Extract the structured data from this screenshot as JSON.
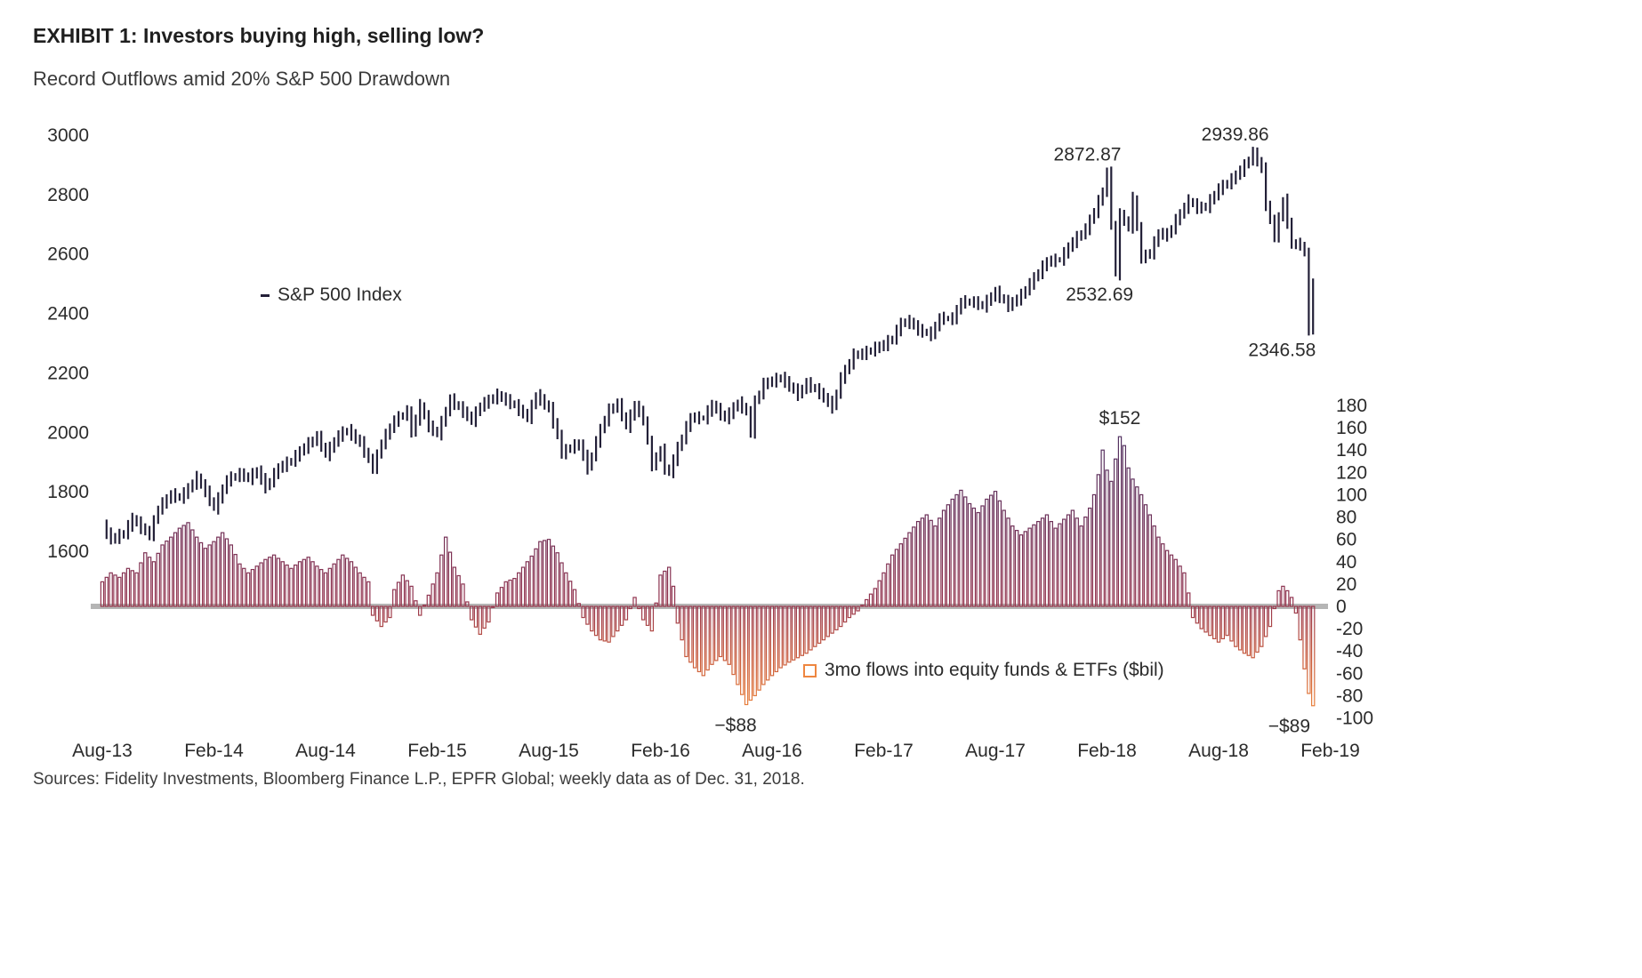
{
  "header": {
    "title": "EXHIBIT 1: Investors buying high, selling low?",
    "subtitle": "Record Outflows amid 20% S&P 500 Drawdown"
  },
  "footer": {
    "source": "Sources: Fidelity Investments, Bloomberg Finance L.P., EPFR Global; weekly data as of Dec. 31, 2018."
  },
  "chart_data": {
    "type": "combo",
    "title": "Record Outflows amid 20% S&P 500 Drawdown",
    "x_axis": {
      "labels": [
        "Aug-13",
        "Feb-14",
        "Aug-14",
        "Feb-15",
        "Aug-15",
        "Feb-16",
        "Aug-16",
        "Feb-17",
        "Aug-17",
        "Feb-18",
        "Aug-18",
        "Feb-19"
      ],
      "weeks_per_label": 26,
      "total_weeks": 287,
      "frequency": "weekly"
    },
    "left_axis": {
      "ticks": [
        "3000",
        "2800",
        "2600",
        "2400",
        "2200",
        "2000",
        "1800",
        "1600"
      ],
      "range": [
        1600,
        3000
      ],
      "series": "S&P 500 Index"
    },
    "right_axis": {
      "ticks": [
        "180",
        "160",
        "140",
        "120",
        "100",
        "80",
        "60",
        "40",
        "20",
        "0",
        "-20",
        "-40",
        "-60",
        "-80",
        "-100"
      ],
      "range": [
        -100,
        180
      ],
      "series": "3mo flows into equity funds & ETFs ($bil)"
    },
    "legend": {
      "sp500_label": "S&P 500 Index",
      "flows_label": "3mo flows into equity funds & ETFs ($bil)"
    },
    "colors": {
      "sp_line": "#232038",
      "flows_orange": "#ee8640",
      "zero_line": "#b5b5b5",
      "text": "#2b2b2b"
    },
    "series": [
      {
        "id": "sp500",
        "name": "S&P 500 Index",
        "type": "hilo-line",
        "color": "#232038",
        "keypoints": [
          [
            0,
            1685
          ],
          [
            2,
            1640
          ],
          [
            5,
            1660
          ],
          [
            7,
            1710
          ],
          [
            9,
            1680
          ],
          [
            11,
            1655
          ],
          [
            13,
            1745
          ],
          [
            16,
            1790
          ],
          [
            18,
            1780
          ],
          [
            20,
            1810
          ],
          [
            22,
            1848
          ],
          [
            24,
            1800
          ],
          [
            26,
            1745
          ],
          [
            29,
            1840
          ],
          [
            32,
            1860
          ],
          [
            34,
            1845
          ],
          [
            36,
            1870
          ],
          [
            38,
            1815
          ],
          [
            41,
            1880
          ],
          [
            44,
            1905
          ],
          [
            47,
            1950
          ],
          [
            50,
            1985
          ],
          [
            52,
            1925
          ],
          [
            55,
            1990
          ],
          [
            57,
            2007
          ],
          [
            60,
            1965
          ],
          [
            63,
            1880
          ],
          [
            65,
            1965
          ],
          [
            68,
            2040
          ],
          [
            71,
            2070
          ],
          [
            72,
            2000
          ],
          [
            74,
            2090
          ],
          [
            76,
            2020
          ],
          [
            78,
            1995
          ],
          [
            81,
            2110
          ],
          [
            84,
            2070
          ],
          [
            86,
            2040
          ],
          [
            88,
            2090
          ],
          [
            92,
            2125
          ],
          [
            96,
            2090
          ],
          [
            99,
            2050
          ],
          [
            101,
            2125
          ],
          [
            104,
            2080
          ],
          [
            106,
            1990
          ],
          [
            107,
            1930
          ],
          [
            109,
            1950
          ],
          [
            111,
            1960
          ],
          [
            113,
            1880
          ],
          [
            116,
            2010
          ],
          [
            118,
            2075
          ],
          [
            120,
            2095
          ],
          [
            122,
            2020
          ],
          [
            124,
            2090
          ],
          [
            126,
            2045
          ],
          [
            128,
            1890
          ],
          [
            130,
            1940
          ],
          [
            131,
            1880
          ],
          [
            132,
            1865
          ],
          [
            134,
            1948
          ],
          [
            137,
            2050
          ],
          [
            140,
            2048
          ],
          [
            142,
            2092
          ],
          [
            145,
            2047
          ],
          [
            148,
            2099
          ],
          [
            150,
            2071
          ],
          [
            151,
            2000
          ],
          [
            152,
            2103
          ],
          [
            154,
            2162
          ],
          [
            158,
            2184
          ],
          [
            162,
            2128
          ],
          [
            164,
            2165
          ],
          [
            167,
            2133
          ],
          [
            170,
            2085
          ],
          [
            172,
            2182
          ],
          [
            175,
            2260
          ],
          [
            177,
            2264
          ],
          [
            179,
            2277
          ],
          [
            182,
            2295
          ],
          [
            184,
            2316
          ],
          [
            186,
            2367
          ],
          [
            188,
            2373
          ],
          [
            190,
            2344
          ],
          [
            193,
            2329
          ],
          [
            195,
            2384
          ],
          [
            198,
            2382
          ],
          [
            200,
            2439
          ],
          [
            203,
            2438
          ],
          [
            205,
            2425
          ],
          [
            208,
            2472
          ],
          [
            211,
            2426
          ],
          [
            214,
            2461
          ],
          [
            217,
            2519
          ],
          [
            220,
            2575
          ],
          [
            223,
            2582
          ],
          [
            226,
            2642
          ],
          [
            229,
            2683
          ],
          [
            231,
            2743
          ],
          [
            233,
            2810
          ],
          [
            234,
            2873
          ],
          [
            236,
            2533
          ],
          [
            237,
            2732
          ],
          [
            239,
            2691
          ],
          [
            240,
            2787
          ],
          [
            242,
            2588
          ],
          [
            244,
            2604
          ],
          [
            246,
            2670
          ],
          [
            248,
            2663
          ],
          [
            250,
            2713
          ],
          [
            253,
            2779
          ],
          [
            255,
            2755
          ],
          [
            257,
            2760
          ],
          [
            260,
            2819
          ],
          [
            263,
            2850
          ],
          [
            266,
            2897
          ],
          [
            268,
            2940
          ],
          [
            270,
            2886
          ],
          [
            271,
            2767
          ],
          [
            273,
            2659
          ],
          [
            275,
            2781
          ],
          [
            277,
            2633
          ],
          [
            279,
            2633
          ],
          [
            280,
            2600
          ],
          [
            281,
            2347
          ],
          [
            282,
            2500
          ]
        ]
      },
      {
        "id": "flows",
        "name": "3mo flows into equity funds & ETFs ($bil)",
        "type": "bar",
        "gradient_stops": [
          [
            0,
            "#4a3566"
          ],
          [
            0.35,
            "#6b2f58"
          ],
          [
            0.62,
            "#93344f"
          ],
          [
            0.8,
            "#c85a3c"
          ],
          [
            1,
            "#f18a3c"
          ]
        ],
        "keypoints": [
          [
            0,
            22
          ],
          [
            2,
            30
          ],
          [
            4,
            26
          ],
          [
            6,
            34
          ],
          [
            8,
            30
          ],
          [
            10,
            48
          ],
          [
            12,
            40
          ],
          [
            14,
            55
          ],
          [
            16,
            62
          ],
          [
            18,
            70
          ],
          [
            20,
            75
          ],
          [
            22,
            62
          ],
          [
            24,
            52
          ],
          [
            26,
            58
          ],
          [
            28,
            66
          ],
          [
            30,
            55
          ],
          [
            32,
            38
          ],
          [
            34,
            30
          ],
          [
            36,
            36
          ],
          [
            38,
            42
          ],
          [
            40,
            46
          ],
          [
            42,
            40
          ],
          [
            44,
            34
          ],
          [
            46,
            40
          ],
          [
            48,
            44
          ],
          [
            50,
            36
          ],
          [
            52,
            30
          ],
          [
            54,
            38
          ],
          [
            56,
            46
          ],
          [
            58,
            40
          ],
          [
            60,
            30
          ],
          [
            62,
            22
          ],
          [
            63,
            -8
          ],
          [
            65,
            -18
          ],
          [
            67,
            -10
          ],
          [
            68,
            15
          ],
          [
            70,
            28
          ],
          [
            72,
            18
          ],
          [
            74,
            -8
          ],
          [
            76,
            10
          ],
          [
            78,
            30
          ],
          [
            80,
            62
          ],
          [
            82,
            35
          ],
          [
            84,
            20
          ],
          [
            86,
            -12
          ],
          [
            88,
            -25
          ],
          [
            90,
            -14
          ],
          [
            92,
            12
          ],
          [
            94,
            22
          ],
          [
            96,
            25
          ],
          [
            98,
            35
          ],
          [
            100,
            45
          ],
          [
            102,
            58
          ],
          [
            104,
            60
          ],
          [
            106,
            48
          ],
          [
            108,
            30
          ],
          [
            110,
            15
          ],
          [
            112,
            -10
          ],
          [
            114,
            -22
          ],
          [
            116,
            -30
          ],
          [
            118,
            -32
          ],
          [
            120,
            -22
          ],
          [
            122,
            -12
          ],
          [
            124,
            8
          ],
          [
            126,
            -12
          ],
          [
            128,
            -22
          ],
          [
            130,
            28
          ],
          [
            132,
            35
          ],
          [
            133,
            18
          ],
          [
            134,
            -15
          ],
          [
            136,
            -45
          ],
          [
            138,
            -55
          ],
          [
            140,
            -62
          ],
          [
            142,
            -52
          ],
          [
            144,
            -45
          ],
          [
            146,
            -52
          ],
          [
            148,
            -70
          ],
          [
            150,
            -88
          ],
          [
            152,
            -80
          ],
          [
            154,
            -70
          ],
          [
            156,
            -62
          ],
          [
            158,
            -55
          ],
          [
            160,
            -50
          ],
          [
            162,
            -46
          ],
          [
            164,
            -42
          ],
          [
            166,
            -36
          ],
          [
            168,
            -30
          ],
          [
            170,
            -24
          ],
          [
            172,
            -18
          ],
          [
            174,
            -10
          ],
          [
            176,
            -4
          ],
          [
            178,
            6
          ],
          [
            180,
            16
          ],
          [
            182,
            30
          ],
          [
            184,
            46
          ],
          [
            186,
            56
          ],
          [
            188,
            66
          ],
          [
            190,
            76
          ],
          [
            192,
            82
          ],
          [
            194,
            72
          ],
          [
            196,
            86
          ],
          [
            198,
            96
          ],
          [
            200,
            104
          ],
          [
            202,
            92
          ],
          [
            204,
            84
          ],
          [
            206,
            96
          ],
          [
            208,
            103
          ],
          [
            210,
            86
          ],
          [
            212,
            72
          ],
          [
            214,
            64
          ],
          [
            216,
            70
          ],
          [
            218,
            76
          ],
          [
            220,
            82
          ],
          [
            222,
            70
          ],
          [
            224,
            78
          ],
          [
            226,
            86
          ],
          [
            228,
            72
          ],
          [
            230,
            88
          ],
          [
            231,
            100
          ],
          [
            232,
            118
          ],
          [
            233,
            140
          ],
          [
            234,
            122
          ],
          [
            235,
            112
          ],
          [
            236,
            132
          ],
          [
            237,
            152
          ],
          [
            238,
            144
          ],
          [
            239,
            124
          ],
          [
            240,
            114
          ],
          [
            242,
            100
          ],
          [
            244,
            82
          ],
          [
            246,
            62
          ],
          [
            248,
            50
          ],
          [
            250,
            42
          ],
          [
            252,
            30
          ],
          [
            253,
            12
          ],
          [
            254,
            -10
          ],
          [
            256,
            -20
          ],
          [
            258,
            -26
          ],
          [
            260,
            -32
          ],
          [
            262,
            -26
          ],
          [
            264,
            -36
          ],
          [
            266,
            -42
          ],
          [
            268,
            -46
          ],
          [
            270,
            -36
          ],
          [
            272,
            -18
          ],
          [
            274,
            14
          ],
          [
            275,
            18
          ],
          [
            276,
            14
          ],
          [
            277,
            8
          ],
          [
            278,
            -6
          ],
          [
            279,
            -30
          ],
          [
            280,
            -56
          ],
          [
            281,
            -78
          ],
          [
            282,
            -89
          ]
        ]
      }
    ],
    "annotations": [
      {
        "text": "2872.87",
        "series": "sp500",
        "week": 234,
        "value": 2873,
        "placement": "above"
      },
      {
        "text": "2532.69",
        "series": "sp500",
        "week": 236,
        "value": 2533,
        "placement": "below"
      },
      {
        "text": "2939.86",
        "series": "sp500",
        "week": 268,
        "value": 2940,
        "placement": "above"
      },
      {
        "text": "2346.58",
        "series": "sp500",
        "week": 281,
        "value": 2347,
        "placement": "below"
      },
      {
        "text": "$152",
        "series": "flows",
        "week": 237,
        "value": 152,
        "placement": "above"
      },
      {
        "text": "−$88",
        "series": "flows",
        "week": 150,
        "value": -88,
        "placement": "below"
      },
      {
        "text": "−$89",
        "series": "flows",
        "week": 281,
        "value": -89,
        "placement": "below"
      }
    ]
  }
}
